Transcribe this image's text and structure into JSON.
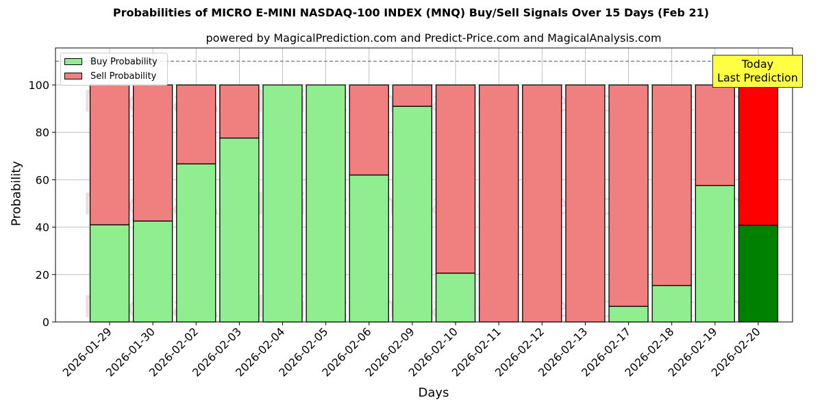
{
  "header": {
    "title": "Probabilities of MICRO E-MINI NASDAQ-100 INDEX (MNQ) Buy/Sell Signals Over 15 Days (Feb 21)",
    "subtitle": "powered by MagicalPrediction.com and Predict-Price.com and MagicalAnalysis.com"
  },
  "legend": {
    "buy_label": "Buy Probability",
    "sell_label": "Sell Probability"
  },
  "annotation": {
    "line1": "Today",
    "line2": "Last Prediction"
  },
  "watermarks": [
    "MagicalAnalysis.com",
    "MagicalPrediction.com"
  ],
  "colors": {
    "buy": "#90ee90",
    "sell": "#f08080",
    "buy_today": "#008000",
    "sell_today": "#ff0000",
    "annotation_bg": "#ffff44",
    "grid": "#b0b0b0"
  },
  "chart_data": {
    "type": "bar",
    "stacked": true,
    "title": "Probabilities of MICRO E-MINI NASDAQ-100 INDEX (MNQ) Buy/Sell Signals Over 15 Days (Feb 21)",
    "subtitle": "powered by MagicalPrediction.com and Predict-Price.com and MagicalAnalysis.com",
    "xlabel": "Days",
    "ylabel": "Probability",
    "ylim": [
      0,
      115
    ],
    "yticks": [
      0,
      20,
      40,
      60,
      80,
      100
    ],
    "grid": true,
    "legend_position": "upper left",
    "reference_line": {
      "y": 110,
      "style": "dashed"
    },
    "categories": [
      "2026-01-29",
      "2026-01-30",
      "2026-02-02",
      "2026-02-03",
      "2026-02-04",
      "2026-02-05",
      "2026-02-06",
      "2026-02-09",
      "2026-02-10",
      "2026-02-11",
      "2026-02-12",
      "2026-02-13",
      "2026-02-17",
      "2026-02-18",
      "2026-02-19",
      "2026-02-20"
    ],
    "series": [
      {
        "name": "Buy Probability",
        "values": [
          41.0,
          42.6,
          66.7,
          77.6,
          100,
          100,
          62.0,
          91.0,
          20.6,
          0,
          0,
          0,
          6.6,
          15.4,
          57.6,
          40.8
        ]
      },
      {
        "name": "Sell Probability",
        "values": [
          59.0,
          57.4,
          33.3,
          22.4,
          0,
          0,
          38.0,
          9.0,
          79.4,
          100,
          100,
          100,
          93.4,
          84.6,
          42.4,
          59.2
        ]
      }
    ],
    "annotations": [
      {
        "text": "Today\nLast Prediction",
        "x": "2026-02-20"
      }
    ]
  }
}
